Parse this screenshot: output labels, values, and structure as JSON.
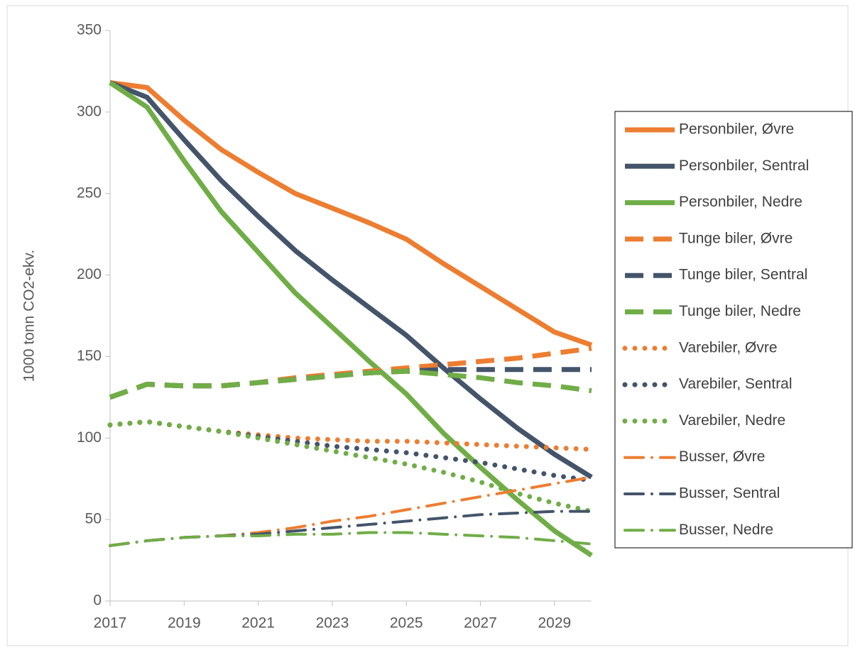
{
  "chart_data": {
    "type": "line",
    "y_label": "1000 tonn CO2-ekv.",
    "x": [
      2017,
      2018,
      2019,
      2020,
      2021,
      2022,
      2023,
      2024,
      2025,
      2026,
      2027,
      2028,
      2029,
      2030
    ],
    "xlim": [
      2017,
      2030
    ],
    "xticks": [
      2017,
      2019,
      2021,
      2023,
      2025,
      2027,
      2029
    ],
    "ylim": [
      0,
      350
    ],
    "yticks": [
      0,
      50,
      100,
      150,
      200,
      250,
      300,
      350
    ],
    "legend": "right",
    "series": [
      {
        "name": "Personbiler, Øvre",
        "color": "#ed7d31",
        "style": "solid",
        "values": [
          318,
          315,
          295,
          277,
          263,
          250,
          241,
          232,
          222,
          207,
          193,
          179,
          165,
          157
        ]
      },
      {
        "name": "Personbiler, Sentral",
        "color": "#44546a",
        "style": "solid",
        "values": [
          318,
          309,
          283,
          258,
          236,
          215,
          197,
          180,
          163,
          143,
          124,
          106,
          90,
          76
        ]
      },
      {
        "name": "Personbiler, Nedre",
        "color": "#70ad47",
        "style": "solid",
        "values": [
          318,
          303,
          270,
          239,
          214,
          189,
          168,
          147,
          127,
          103,
          82,
          62,
          43,
          28
        ]
      },
      {
        "name": "Tunge biler, Øvre",
        "color": "#ed7d31",
        "style": "dash",
        "values": [
          125,
          133,
          132,
          132,
          134,
          137,
          139,
          141,
          143,
          145,
          147,
          149,
          152,
          155
        ]
      },
      {
        "name": "Tunge biler, Sentral",
        "color": "#44546a",
        "style": "dash",
        "values": [
          125,
          133,
          132,
          132,
          134,
          136,
          138,
          140,
          141,
          142,
          142,
          142,
          142,
          142
        ]
      },
      {
        "name": "Tunge biler, Nedre",
        "color": "#70ad47",
        "style": "dash",
        "values": [
          125,
          133,
          132,
          132,
          134,
          136,
          138,
          140,
          141,
          139,
          137,
          134,
          132,
          129
        ]
      },
      {
        "name": "Varebiler, Øvre",
        "color": "#ed7d31",
        "style": "dot",
        "values": [
          108,
          110,
          107,
          104,
          102,
          100,
          99,
          98,
          98,
          97,
          96,
          95,
          94,
          93
        ]
      },
      {
        "name": "Varebiler, Sentral",
        "color": "#44546a",
        "style": "dot",
        "values": [
          108,
          110,
          107,
          104,
          101,
          98,
          95,
          93,
          91,
          88,
          85,
          81,
          77,
          74
        ]
      },
      {
        "name": "Varebiler, Nedre",
        "color": "#70ad47",
        "style": "dot",
        "values": [
          108,
          110,
          107,
          104,
          100,
          96,
          92,
          88,
          84,
          79,
          73,
          66,
          60,
          55
        ]
      },
      {
        "name": "Busser, Øvre",
        "color": "#ed7d31",
        "style": "dashdot",
        "values": [
          34,
          37,
          39,
          40,
          42,
          45,
          49,
          52,
          56,
          60,
          64,
          68,
          72,
          76
        ]
      },
      {
        "name": "Busser, Sentral",
        "color": "#44546a",
        "style": "dashdot",
        "values": [
          34,
          37,
          39,
          40,
          41,
          43,
          45,
          47,
          49,
          51,
          53,
          54,
          55,
          55
        ]
      },
      {
        "name": "Busser, Nedre",
        "color": "#70ad47",
        "style": "dashdot",
        "values": [
          34,
          37,
          39,
          40,
          40,
          41,
          41,
          42,
          42,
          41,
          40,
          39,
          37,
          35
        ]
      }
    ]
  }
}
